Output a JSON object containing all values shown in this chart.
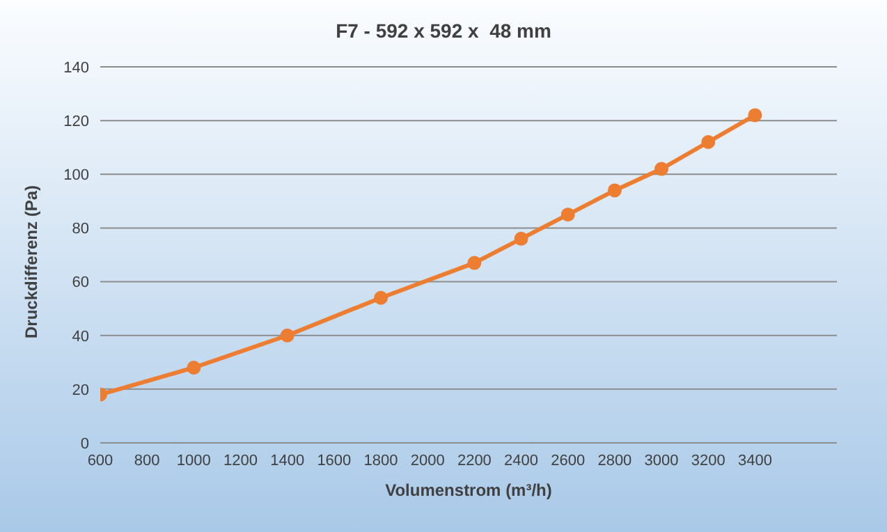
{
  "chart_data": {
    "type": "line",
    "title": "F7 - 592 x 592 x  48 mm",
    "xlabel": "Volumenstrom (m³/h)",
    "ylabel": "Druckdifferenz (Pa)",
    "x": [
      600,
      1000,
      1400,
      1800,
      2200,
      2400,
      2600,
      2800,
      3000,
      3200,
      3400
    ],
    "series": [
      {
        "color": "#ed7d31",
        "values": [
          18,
          28,
          40,
          54,
          67,
          76,
          85,
          94,
          102,
          112,
          122
        ]
      }
    ],
    "xlim": [
      600,
      3750
    ],
    "xticks": [
      600,
      800,
      1000,
      1200,
      1400,
      1600,
      1800,
      2000,
      2200,
      2400,
      2600,
      2800,
      3000,
      3200,
      3400
    ],
    "ylim": [
      0,
      140
    ],
    "yticks": [
      0,
      20,
      40,
      60,
      80,
      100,
      120,
      140
    ],
    "grid": "y",
    "legend": false,
    "marker": "circle",
    "line_style": "solid"
  }
}
